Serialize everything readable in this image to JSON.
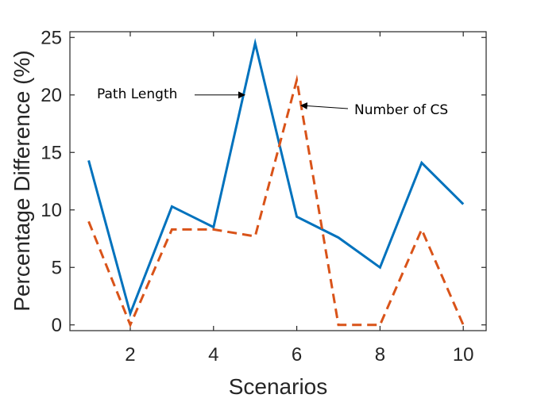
{
  "chart_data": {
    "type": "line",
    "title": "",
    "xlabel": "Scenarios",
    "ylabel": "Percentage Difference (%)",
    "x": [
      1,
      2,
      3,
      4,
      5,
      6,
      7,
      8,
      9,
      10
    ],
    "xlim": [
      0.55,
      10.55
    ],
    "ylim": [
      -0.5,
      25.5
    ],
    "xticks": [
      2,
      4,
      6,
      8,
      10
    ],
    "yticks": [
      0,
      5,
      10,
      15,
      20,
      25
    ],
    "grid": false,
    "series": [
      {
        "values": [
          14.3,
          1.0,
          10.3,
          8.5,
          24.5,
          9.4,
          7.6,
          5.0,
          14.1,
          10.5
        ],
        "color": "#0072BD",
        "style": "solid"
      },
      {
        "values": [
          9.0,
          0.0,
          8.3,
          8.3,
          7.7,
          21.3,
          0.0,
          0.0,
          8.3,
          0.0
        ],
        "color": "#D95319",
        "style": "dashed"
      }
    ],
    "annotations": [
      {
        "text": "Path Length",
        "target_x": 4.75,
        "target_y": 20
      },
      {
        "text": "Number of CS",
        "target_x": 6.1,
        "target_y": 19
      }
    ]
  }
}
